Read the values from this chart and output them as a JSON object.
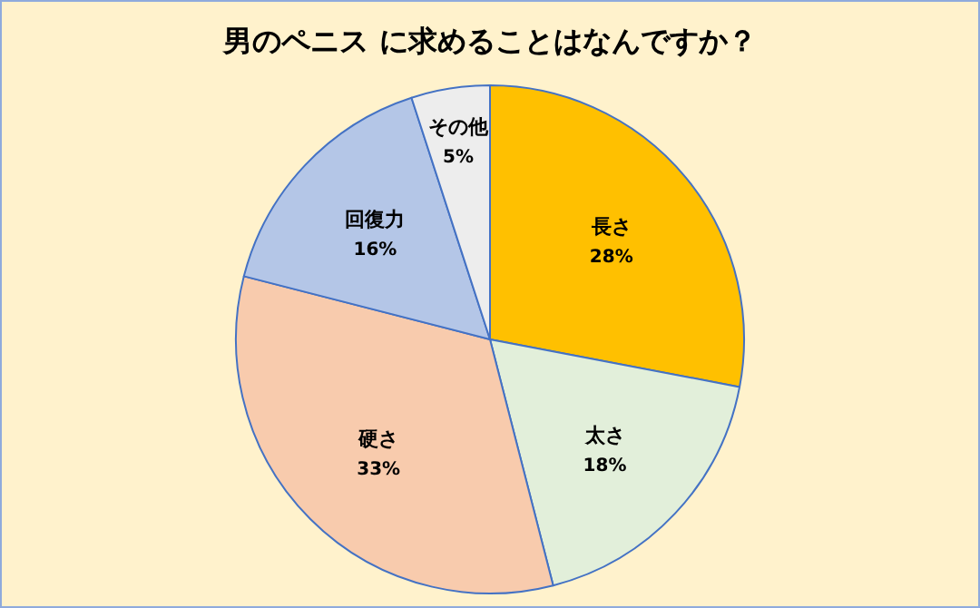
{
  "chart_data": {
    "type": "pie",
    "title": "男のペニス に求めることはなんですか？",
    "categories": [
      "長さ",
      "太さ",
      "硬さ",
      "回復力",
      "その他"
    ],
    "values": [
      28,
      18,
      33,
      16,
      5
    ],
    "colors": [
      "#ffc000",
      "#e2efda",
      "#f8cbad",
      "#b4c6e7",
      "#ededed"
    ],
    "value_labels": [
      "28%",
      "18%",
      "33%",
      "16%",
      "5%"
    ]
  }
}
